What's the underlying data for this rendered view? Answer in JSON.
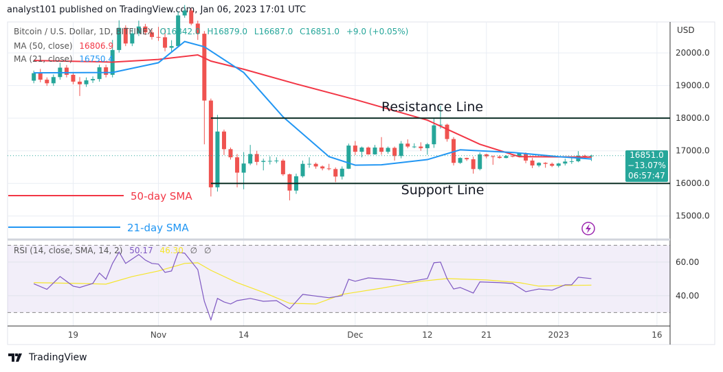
{
  "header": {
    "published": "analyst101 published on TradingView.com, Jan 06, 2023 17:01 UTC"
  },
  "legend": {
    "symbol": "Bitcoin / U.S. Dollar, 1D, BITFINEX",
    "open": "O16842.0",
    "high": "H16879.0",
    "low": "L16687.0",
    "close": "C16851.0",
    "change": "+9.0 (+0.05%)",
    "ma50_label": "MA (50, close)",
    "ma50_value": "16806.9",
    "ma21_label": "MA (21, close)",
    "ma21_value": "16750.4",
    "rsi_label": "RSI (14, close, SMA, 14, 2)",
    "rsi_value": "50.17",
    "rsi_sma_value": "46.30",
    "rsi_extra1": "∅",
    "rsi_extra2": "∅"
  },
  "price_box": {
    "price": "16851.0",
    "change_pct": "−13.07%",
    "countdown": "06:57:47"
  },
  "footer": {
    "brand": "TradingView"
  },
  "colors": {
    "up": "#26a69a",
    "down": "#ef5350",
    "ma50": "#f23645",
    "ma21": "#2196f3",
    "rsi": "#7e57c2",
    "rsi_sma": "#f5e52b",
    "level": "#0b2e24"
  },
  "chart_data": {
    "type": "candlestick",
    "currency_label": "USD",
    "y_ticks": [
      "20000.0",
      "19000.0",
      "18000.0",
      "17000.0",
      "16000.0",
      "15000.0"
    ],
    "ylim": [
      14300,
      20950
    ],
    "x_ticks": [
      {
        "date": "2022-10-19",
        "label": "19"
      },
      {
        "date": "2022-11-01",
        "label": "Nov"
      },
      {
        "date": "2022-11-14",
        "label": "14"
      },
      {
        "date": "2022-12-01",
        "label": "Dec"
      },
      {
        "date": "2022-12-12",
        "label": "12"
      },
      {
        "date": "2022-12-21",
        "label": "21"
      },
      {
        "date": "2023-01-01",
        "label": "2023"
      },
      {
        "date": "2023-01-16",
        "label": "16"
      }
    ],
    "xlim": [
      "2022-10-09",
      "2023-01-18"
    ],
    "candles_start": "2022-10-13",
    "candles_ohlc": [
      [
        19150,
        19460,
        19070,
        19380
      ],
      [
        19380,
        19510,
        19100,
        19180
      ],
      [
        19180,
        19250,
        18990,
        19070
      ],
      [
        19070,
        19340,
        18990,
        19260
      ],
      [
        19260,
        19700,
        19180,
        19550
      ],
      [
        19550,
        19630,
        19250,
        19330
      ],
      [
        19330,
        19410,
        19040,
        19120
      ],
      [
        19120,
        19260,
        18680,
        19040
      ],
      [
        19040,
        19250,
        18960,
        19160
      ],
      [
        19160,
        19280,
        19080,
        19200
      ],
      [
        19200,
        19640,
        19120,
        19560
      ],
      [
        19560,
        19640,
        19250,
        19330
      ],
      [
        19330,
        20400,
        19250,
        20090
      ],
      [
        20090,
        21000,
        20010,
        20770
      ],
      [
        20770,
        20850,
        20210,
        20290
      ],
      [
        20290,
        20750,
        20210,
        20600
      ],
      [
        20600,
        20990,
        20520,
        20810
      ],
      [
        20810,
        20890,
        20550,
        20630
      ],
      [
        20630,
        20710,
        20410,
        20490
      ],
      [
        20490,
        20800,
        20370,
        20480
      ],
      [
        20480,
        20750,
        20050,
        20160
      ],
      [
        20160,
        20390,
        20050,
        20210
      ],
      [
        20210,
        21280,
        20180,
        21150
      ],
      [
        21150,
        21470,
        21080,
        21300
      ],
      [
        21300,
        21370,
        20850,
        20900
      ],
      [
        20900,
        20990,
        20400,
        20590
      ],
      [
        20590,
        20670,
        17200,
        18540
      ],
      [
        18540,
        18600,
        15600,
        15880
      ],
      [
        15880,
        18100,
        15750,
        17590
      ],
      [
        17590,
        17650,
        16870,
        17050
      ],
      [
        17050,
        17100,
        16730,
        16800
      ],
      [
        16800,
        16900,
        15880,
        16330
      ],
      [
        16330,
        16960,
        15820,
        16610
      ],
      [
        16610,
        17180,
        16560,
        16900
      ],
      [
        16900,
        17000,
        16560,
        16660
      ],
      [
        16660,
        16760,
        16400,
        16690
      ],
      [
        16690,
        16830,
        16580,
        16690
      ],
      [
        16690,
        16800,
        16620,
        16700
      ],
      [
        16700,
        16750,
        16230,
        16280
      ],
      [
        16280,
        16300,
        15480,
        15780
      ],
      [
        15780,
        16300,
        15680,
        16220
      ],
      [
        16220,
        16700,
        16180,
        16600
      ],
      [
        16600,
        16800,
        16480,
        16600
      ],
      [
        16600,
        16640,
        16450,
        16520
      ],
      [
        16520,
        16550,
        16400,
        16460
      ],
      [
        16460,
        16600,
        16400,
        16440
      ],
      [
        16440,
        16490,
        16040,
        16210
      ],
      [
        16210,
        16520,
        16120,
        16450
      ],
      [
        16450,
        17220,
        16440,
        17160
      ],
      [
        17160,
        17300,
        16870,
        16970
      ],
      [
        16970,
        17130,
        16800,
        17100
      ],
      [
        17100,
        17130,
        16880,
        16890
      ],
      [
        16890,
        17180,
        16880,
        17100
      ],
      [
        17100,
        17420,
        16880,
        16970
      ],
      [
        16970,
        17130,
        16910,
        17090
      ],
      [
        17090,
        17130,
        16700,
        16840
      ],
      [
        16840,
        17300,
        16770,
        17220
      ],
      [
        17220,
        17350,
        17080,
        17130
      ],
      [
        17130,
        17230,
        17080,
        17130
      ],
      [
        17130,
        17260,
        17000,
        17080
      ],
      [
        17080,
        17240,
        16880,
        17200
      ],
      [
        17200,
        18000,
        17090,
        17780
      ],
      [
        17780,
        18380,
        17680,
        17800
      ],
      [
        17800,
        17830,
        17280,
        17360
      ],
      [
        17360,
        17420,
        16550,
        16630
      ],
      [
        16630,
        16800,
        16600,
        16780
      ],
      [
        16780,
        16790,
        16690,
        16740
      ],
      [
        16740,
        16820,
        16300,
        16440
      ],
      [
        16440,
        16950,
        16400,
        16890
      ],
      [
        16890,
        16910,
        16770,
        16830
      ],
      [
        16830,
        16860,
        16570,
        16820
      ],
      [
        16820,
        16860,
        16760,
        16780
      ],
      [
        16780,
        16870,
        16770,
        16840
      ],
      [
        16840,
        16860,
        16800,
        16830
      ],
      [
        16830,
        16940,
        16800,
        16920
      ],
      [
        16920,
        16950,
        16620,
        16700
      ],
      [
        16700,
        16780,
        16470,
        16550
      ],
      [
        16550,
        16650,
        16500,
        16630
      ],
      [
        16630,
        16650,
        16480,
        16600
      ],
      [
        16600,
        16640,
        16500,
        16540
      ],
      [
        16540,
        16630,
        16490,
        16610
      ],
      [
        16610,
        16760,
        16550,
        16670
      ],
      [
        16670,
        16790,
        16600,
        16680
      ],
      [
        16680,
        16990,
        16650,
        16850
      ],
      [
        16850,
        16880,
        16770,
        16830
      ],
      [
        16842,
        16879,
        16687,
        16851
      ]
    ],
    "ma50": [
      [
        "2022-10-13",
        19770
      ],
      [
        "2022-10-25",
        19720
      ],
      [
        "2022-11-01",
        19800
      ],
      [
        "2022-11-07",
        19940
      ],
      [
        "2022-11-09",
        19750
      ],
      [
        "2022-11-14",
        19500
      ],
      [
        "2022-11-22",
        19050
      ],
      [
        "2022-12-01",
        18570
      ],
      [
        "2022-12-12",
        17940
      ],
      [
        "2022-12-20",
        17200
      ],
      [
        "2022-12-26",
        16820
      ],
      [
        "2023-01-06",
        16807
      ]
    ],
    "ma21": [
      [
        "2022-10-13",
        19390
      ],
      [
        "2022-10-25",
        19400
      ],
      [
        "2022-11-01",
        19700
      ],
      [
        "2022-11-05",
        20350
      ],
      [
        "2022-11-08",
        20190
      ],
      [
        "2022-11-14",
        19400
      ],
      [
        "2022-11-20",
        18040
      ],
      [
        "2022-11-27",
        16820
      ],
      [
        "2022-12-01",
        16560
      ],
      [
        "2022-12-05",
        16570
      ],
      [
        "2022-12-12",
        16730
      ],
      [
        "2022-12-17",
        17030
      ],
      [
        "2022-12-25",
        16950
      ],
      [
        "2023-01-01",
        16820
      ],
      [
        "2023-01-06",
        16750
      ]
    ],
    "last_price": 16851,
    "annotations": [
      {
        "type": "hline",
        "price": 18000,
        "from": "2022-11-09",
        "label": "Resistance Line",
        "label_date": "2022-12-05"
      },
      {
        "type": "hline",
        "price": 16000,
        "from": "2022-11-09",
        "label": "Support Line",
        "label_date": "2022-12-08"
      }
    ],
    "legend_items": [
      {
        "label": "50-day SMA",
        "color": "#f23645"
      },
      {
        "label": "21-day SMA",
        "color": "#2196f3"
      }
    ],
    "rsi": {
      "ylim": [
        22,
        73
      ],
      "bands": [
        70,
        30
      ],
      "y_ticks": [
        "60.00",
        "40.00"
      ],
      "values": [
        [
          "2022-10-13",
          47.1
        ],
        [
          "2022-10-15",
          43.8
        ],
        [
          "2022-10-17",
          51.4
        ],
        [
          "2022-10-19",
          45.7
        ],
        [
          "2022-10-20",
          44.9
        ],
        [
          "2022-10-22",
          47.3
        ],
        [
          "2022-10-23",
          53.5
        ],
        [
          "2022-10-24",
          49.8
        ],
        [
          "2022-10-25",
          59.2
        ],
        [
          "2022-10-26",
          66
        ],
        [
          "2022-10-27",
          59.2
        ],
        [
          "2022-10-29",
          64.5
        ],
        [
          "2022-10-30",
          61.2
        ],
        [
          "2022-10-31",
          59.2
        ],
        [
          "2022-11-01",
          58.8
        ],
        [
          "2022-11-02",
          53.9
        ],
        [
          "2022-11-03",
          54.7
        ],
        [
          "2022-11-04",
          65.7
        ],
        [
          "2022-11-05",
          65.3
        ],
        [
          "2022-11-07",
          55.5
        ],
        [
          "2022-11-08",
          36.7
        ],
        [
          "2022-11-09",
          25.7
        ],
        [
          "2022-11-10",
          38.4
        ],
        [
          "2022-11-11",
          36.3
        ],
        [
          "2022-11-12",
          35.1
        ],
        [
          "2022-11-13",
          37.1
        ],
        [
          "2022-11-15",
          38.4
        ],
        [
          "2022-11-17",
          36.7
        ],
        [
          "2022-11-19",
          37.1
        ],
        [
          "2022-11-21",
          32.2
        ],
        [
          "2022-11-23",
          40.8
        ],
        [
          "2022-11-27",
          38.8
        ],
        [
          "2022-11-29",
          40
        ],
        [
          "2022-11-30",
          49.8
        ],
        [
          "2022-12-01",
          48.6
        ],
        [
          "2022-12-03",
          50.6
        ],
        [
          "2022-12-07",
          49.4
        ],
        [
          "2022-12-09",
          48.2
        ],
        [
          "2022-12-12",
          50.2
        ],
        [
          "2022-12-13",
          59.6
        ],
        [
          "2022-12-14",
          60
        ],
        [
          "2022-12-15",
          50.2
        ],
        [
          "2022-12-16",
          44
        ],
        [
          "2022-12-17",
          44.9
        ],
        [
          "2022-12-19",
          41.6
        ],
        [
          "2022-12-20",
          48.2
        ],
        [
          "2022-12-23",
          47.8
        ],
        [
          "2022-12-25",
          47.3
        ],
        [
          "2022-12-27",
          42.4
        ],
        [
          "2022-12-29",
          44
        ],
        [
          "2022-12-31",
          43.3
        ],
        [
          "2023-01-02",
          46.5
        ],
        [
          "2023-01-03",
          46.5
        ],
        [
          "2023-01-04",
          51
        ],
        [
          "2023-01-06",
          50.17
        ]
      ],
      "sma": [
        [
          "2022-10-13",
          47.8
        ],
        [
          "2022-10-20",
          47.3
        ],
        [
          "2022-10-24",
          46.9
        ],
        [
          "2022-10-28",
          51.4
        ],
        [
          "2022-11-01",
          54.7
        ],
        [
          "2022-11-05",
          59.2
        ],
        [
          "2022-11-07",
          59.6
        ],
        [
          "2022-11-09",
          55.1
        ],
        [
          "2022-11-13",
          47.8
        ],
        [
          "2022-11-17",
          42
        ],
        [
          "2022-11-21",
          35.5
        ],
        [
          "2022-11-25",
          35.1
        ],
        [
          "2022-11-29",
          40.8
        ],
        [
          "2022-12-05",
          44.5
        ],
        [
          "2022-12-11",
          48.6
        ],
        [
          "2022-12-15",
          50.2
        ],
        [
          "2022-12-21",
          49.4
        ],
        [
          "2022-12-26",
          47.8
        ],
        [
          "2022-12-29",
          45.7
        ],
        [
          "2023-01-02",
          46.1
        ],
        [
          "2023-01-06",
          46.3
        ]
      ]
    }
  }
}
